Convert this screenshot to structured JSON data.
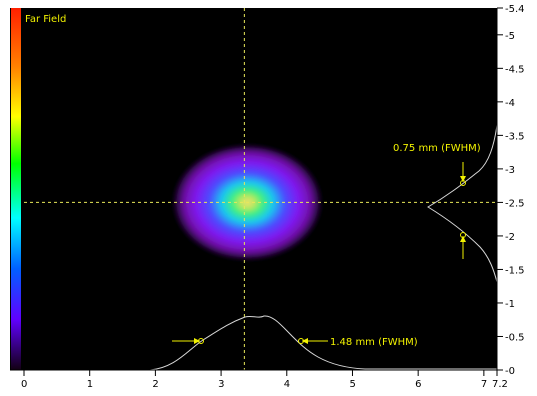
{
  "title": "Far Field",
  "colors": {
    "plot_background": "#000000",
    "crosshair": "#e8e85a",
    "annotation": "#f2f200",
    "profile_line": "#d8d8d8",
    "colorbar": [
      "#ff2000",
      "#ff8000",
      "#ffff00",
      "#00ff00",
      "#00ffff",
      "#0060ff",
      "#6000ff",
      "#120012"
    ],
    "beam": [
      "#f0e070",
      "#40f080",
      "#18c8f0",
      "#4a4cff",
      "#8018f0",
      "#7010a8",
      "#24063a"
    ]
  },
  "annotations": {
    "horizontal_width": "1.48 mm (FWHM)",
    "vertical_width": "0.75 mm (FWHM)"
  },
  "beam": {
    "center_x_mm": 3.4,
    "center_y_mm": 2.5,
    "fwhm_x_mm": 1.48,
    "fwhm_y_mm": 0.75
  },
  "axes": {
    "x": {
      "range_mm": [
        0,
        7.2
      ],
      "ticks": [
        {
          "value": 0,
          "label": "0"
        },
        {
          "value": 1,
          "label": "1"
        },
        {
          "value": 2,
          "label": "2"
        },
        {
          "value": 3,
          "label": "3"
        },
        {
          "value": 4,
          "label": "4"
        },
        {
          "value": 5,
          "label": "5"
        },
        {
          "value": 6,
          "label": "6"
        },
        {
          "value": 7,
          "label": "7"
        },
        {
          "value": 7.2,
          "label": "7.2"
        }
      ]
    },
    "y": {
      "range_mm": [
        0,
        5.4
      ],
      "ticks": [
        {
          "value": 5.4,
          "label": "-5.4"
        },
        {
          "value": 5.0,
          "label": "-5"
        },
        {
          "value": 4.5,
          "label": "-4.5"
        },
        {
          "value": 4.0,
          "label": "-4"
        },
        {
          "value": 3.5,
          "label": "-3.5"
        },
        {
          "value": 3.0,
          "label": "-3"
        },
        {
          "value": 2.5,
          "label": "-2.5"
        },
        {
          "value": 2.0,
          "label": "-2"
        },
        {
          "value": 1.5,
          "label": "-1.5"
        },
        {
          "value": 1.0,
          "label": "-1"
        },
        {
          "value": 0.5,
          "label": "-0.5"
        },
        {
          "value": 0.0,
          "label": "-0"
        }
      ]
    }
  }
}
